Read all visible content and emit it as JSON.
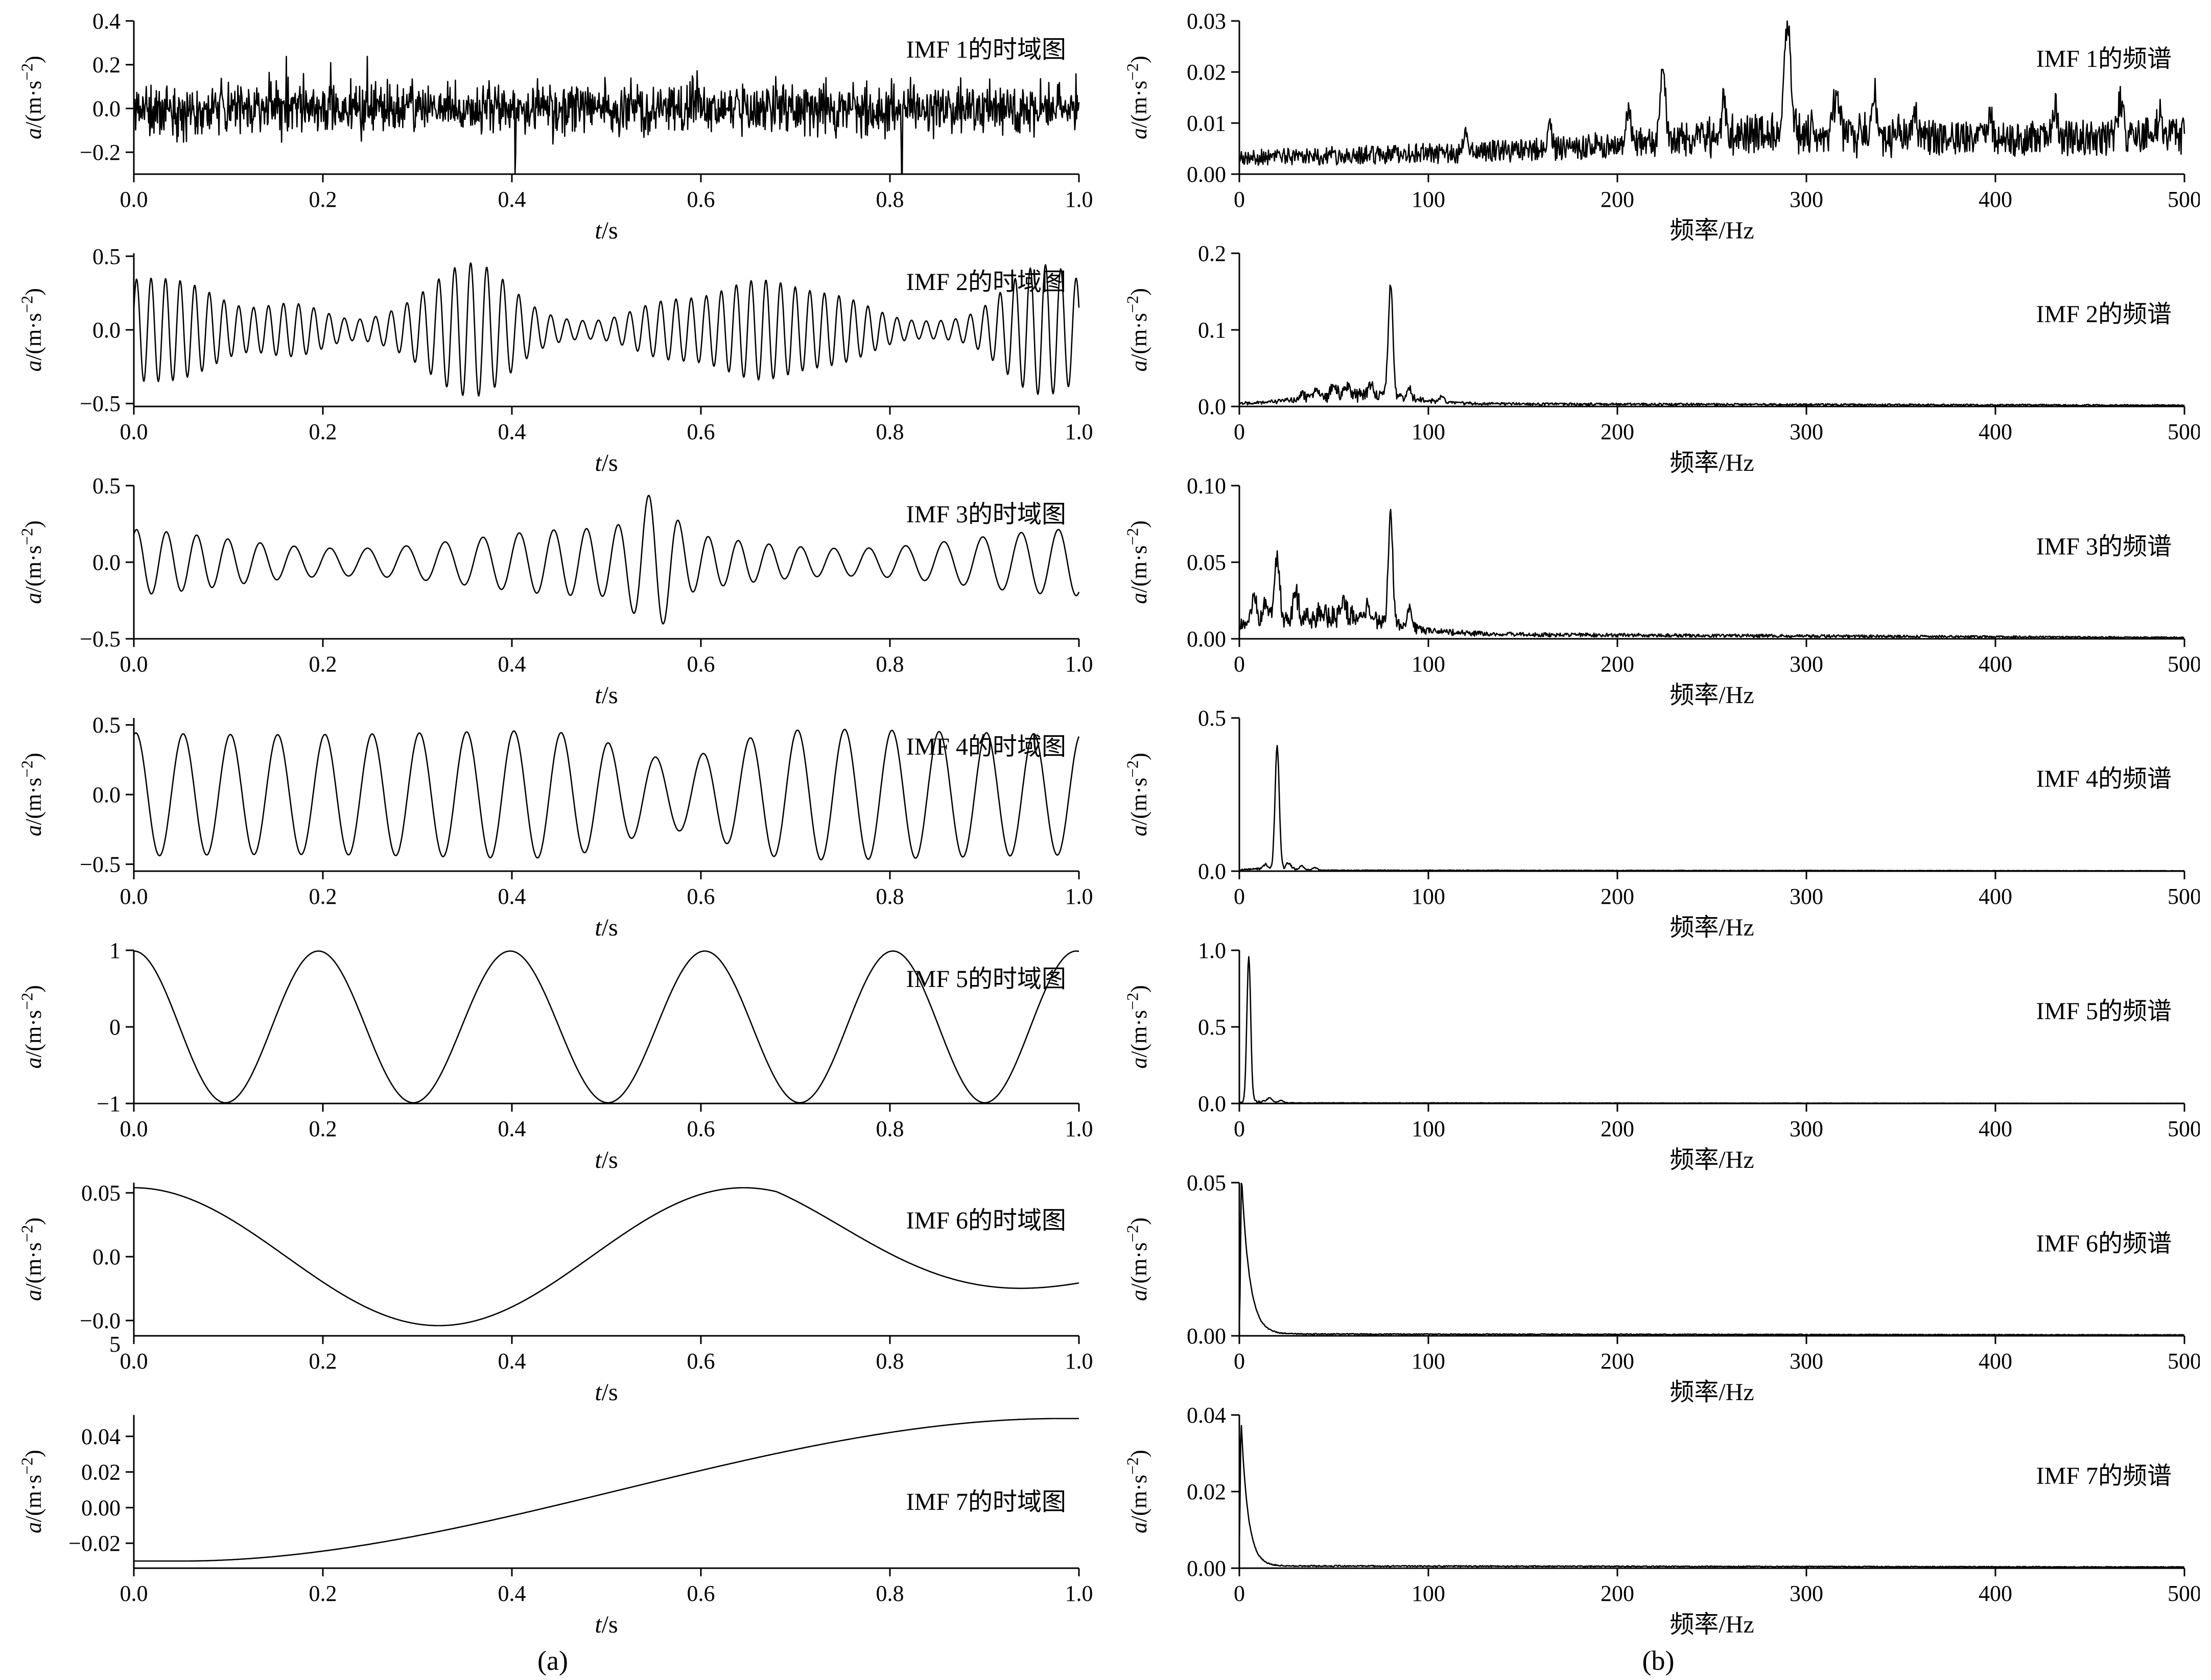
{
  "figure": {
    "caption_a": "(a)",
    "caption_b": "(b)"
  },
  "chart_data": [
    {
      "id": "imf1-time",
      "type": "line",
      "title": "IMF 1的时域图",
      "xlabel": "t/s",
      "ylabel": "a/(m·s⁻²)",
      "xlim": [
        0,
        1
      ],
      "ylim": [
        -0.3,
        0.4
      ],
      "xticks": [
        0,
        0.2,
        0.4,
        0.6,
        0.8,
        1.0
      ],
      "xtick_labels": [
        "0.0",
        "0.2",
        "0.4",
        "0.6",
        "0.8",
        "1.0"
      ],
      "yticks": [
        -0.2,
        0.0,
        0.2,
        0.4
      ],
      "ytick_labels": [
        "−0.2",
        "0.0",
        "0.2",
        "0.4"
      ],
      "title_frac": 0.24,
      "signal": {
        "kind": "noise",
        "n": 1600,
        "seed": 11,
        "amp": 0.062,
        "spike_prob": 0.012,
        "spike_amp": 0.2
      }
    },
    {
      "id": "imf2-time",
      "type": "line",
      "title": "IMF 2的时域图",
      "xlabel": "t/s",
      "ylabel": "a/(m·s⁻²)",
      "xlim": [
        0,
        1
      ],
      "ylim": [
        -0.52,
        0.52
      ],
      "xticks": [
        0,
        0.2,
        0.4,
        0.6,
        0.8,
        1.0
      ],
      "xtick_labels": [
        "0.0",
        "0.2",
        "0.4",
        "0.6",
        "0.8",
        "1.0"
      ],
      "yticks": [
        -0.5,
        0.0,
        0.5
      ],
      "ytick_labels": [
        "−0.5",
        "0.0",
        "0.5"
      ],
      "title_frac": 0.24,
      "signal": {
        "kind": "am",
        "n": 1500,
        "seed": 12,
        "carrier_hz": 62,
        "phase": 0.4,
        "pm_amp": 2.4,
        "pm_hz": 1.3,
        "base": 0.06,
        "env": [
          {
            "hz": 3.2,
            "amp": 0.28,
            "phase": 0.8,
            "pow": 2
          },
          {
            "hz": 5.1,
            "amp": 0.12,
            "phase": 2.5,
            "pow": 2
          }
        ],
        "bursts": []
      }
    },
    {
      "id": "imf3-time",
      "type": "line",
      "title": "IMF 3的时域图",
      "xlabel": "t/s",
      "ylabel": "a/(m·s⁻²)",
      "xlim": [
        0,
        1
      ],
      "ylim": [
        -0.5,
        0.5
      ],
      "xticks": [
        0,
        0.2,
        0.4,
        0.6,
        0.8,
        1.0
      ],
      "xtick_labels": [
        "0.0",
        "0.2",
        "0.4",
        "0.6",
        "0.8",
        "1.0"
      ],
      "yticks": [
        -0.5,
        0.0,
        0.5
      ],
      "ytick_labels": [
        "−0.5",
        "0.0",
        "0.5"
      ],
      "title_frac": 0.24,
      "signal": {
        "kind": "am",
        "n": 1500,
        "seed": 13,
        "carrier_hz": 28,
        "phase": 1.0,
        "pm_amp": 2.2,
        "pm_hz": 1.7,
        "base": 0.09,
        "env": [
          {
            "hz": 1.9,
            "amp": 0.13,
            "phase": 2.0,
            "pow": 1
          }
        ],
        "bursts": [
          {
            "t": 0.55,
            "w": 0.018,
            "amp": 0.24
          }
        ]
      }
    },
    {
      "id": "imf4-time",
      "type": "line",
      "title": "IMF 4的时域图",
      "xlabel": "t/s",
      "ylabel": "a/(m·s⁻²)",
      "xlim": [
        0,
        1
      ],
      "ylim": [
        -0.55,
        0.55
      ],
      "xticks": [
        0,
        0.2,
        0.4,
        0.6,
        0.8,
        1.0
      ],
      "xtick_labels": [
        "0.0",
        "0.2",
        "0.4",
        "0.6",
        "0.8",
        "1.0"
      ],
      "yticks": [
        -0.5,
        0.0,
        0.5
      ],
      "ytick_labels": [
        "−0.5",
        "0.0",
        "0.5"
      ],
      "title_frac": 0.24,
      "signal": {
        "kind": "am",
        "n": 1400,
        "seed": 14,
        "carrier_hz": 20,
        "phase": 1.3,
        "pm_amp": 0,
        "pm_hz": 0,
        "base": 0.48,
        "env": [
          {
            "hz": 1.1,
            "amp": -0.05,
            "phase": 0.5,
            "pow": 1
          }
        ],
        "bursts": [
          {
            "t": 0.57,
            "w": 0.055,
            "amp": -0.22
          }
        ]
      }
    },
    {
      "id": "imf5-time",
      "type": "line",
      "title": "IMF 5的时域图",
      "xlabel": "t/s",
      "ylabel": "a/(m·s⁻²)",
      "xlim": [
        0,
        1
      ],
      "ylim": [
        -1,
        1
      ],
      "xticks": [
        0,
        0.2,
        0.4,
        0.6,
        0.8,
        1.0
      ],
      "xtick_labels": [
        "0.0",
        "0.2",
        "0.4",
        "0.6",
        "0.8",
        "1.0"
      ],
      "yticks": [
        -1,
        0,
        1
      ],
      "ytick_labels": [
        "−1",
        "0",
        "1"
      ],
      "title_frac": 0.24,
      "signal": {
        "kind": "harmonic",
        "n": 1200,
        "hz": 5,
        "amp": 0.99,
        "phase": 0,
        "pm_amp": 0.15,
        "pm_hz": 1.1
      }
    },
    {
      "id": "imf6-time",
      "type": "line",
      "title": "IMF 6的时域图",
      "xlabel": "t/s",
      "ylabel": "a/(m·s⁻²)",
      "xlim": [
        0,
        1
      ],
      "ylim": [
        -0.062,
        0.058
      ],
      "xticks": [
        0,
        0.2,
        0.4,
        0.6,
        0.8,
        1.0
      ],
      "xtick_labels": [
        "0.0",
        "0.2",
        "0.4",
        "0.6",
        "0.8",
        "1.0"
      ],
      "yticks": [
        -0.05,
        0.0,
        0.05
      ],
      "ytick_labels": [
        "−0.0\n5",
        "0.0",
        "0.05"
      ],
      "title_frac": 0.3,
      "signal": {
        "kind": "harmonic",
        "n": 1200,
        "hz": 1.55,
        "amp": 0.054,
        "phase": 0,
        "pm_amp": 0,
        "pm_hz": 0,
        "damp_from": 0.68,
        "damp_tau": 0.35
      }
    },
    {
      "id": "imf7-time",
      "type": "line",
      "title": "IMF 7的时域图",
      "xlabel": "t/s",
      "ylabel": "a/(m·s⁻²)",
      "xlim": [
        0,
        1
      ],
      "ylim": [
        -0.034,
        0.052
      ],
      "xticks": [
        0,
        0.2,
        0.4,
        0.6,
        0.8,
        1.0
      ],
      "xtick_labels": [
        "0.0",
        "0.2",
        "0.4",
        "0.6",
        "0.8",
        "1.0"
      ],
      "yticks": [
        -0.02,
        0.0,
        0.02,
        0.04
      ],
      "ytick_labels": [
        "−0.02",
        "0.00",
        "0.02",
        "0.04"
      ],
      "title_frac": 0.62,
      "signal": {
        "kind": "sigmoid",
        "n": 600,
        "y0": -0.03,
        "y1": 0.05,
        "t0": 0.05,
        "t1": 0.98
      }
    },
    {
      "id": "imf1-spectrum",
      "type": "line",
      "title": "IMF 1的频谱",
      "xlabel": "频率/Hz",
      "ylabel": "a/(m·s⁻²)",
      "xlim": [
        0,
        500
      ],
      "ylim": [
        0,
        0.03
      ],
      "xticks": [
        0,
        100,
        200,
        300,
        400,
        500
      ],
      "xtick_labels": [
        "0",
        "100",
        "200",
        "300",
        "400",
        "500"
      ],
      "yticks": [
        0,
        0.01,
        0.02,
        0.03
      ],
      "ytick_labels": [
        "0.00",
        "0.01",
        "0.02",
        "0.03"
      ],
      "title_frac": 0.3,
      "signal": {
        "kind": "spectrum",
        "n": 1400,
        "seed": 21,
        "floor": [
          0.0032,
          0.0075
        ],
        "noise": 0.5,
        "humps": [
          {
            "hz": 285,
            "w": 55,
            "amp": 0.005,
            "jitter": 1
          }
        ],
        "peaks": [
          [
            290,
            0.0205,
            1.6
          ],
          [
            224,
            0.0135,
            1.4
          ],
          [
            316,
            0.009,
            1.3
          ],
          [
            336,
            0.0075,
            1.2
          ],
          [
            256,
            0.007,
            1.2
          ],
          [
            206,
            0.006,
            1.2
          ],
          [
            357,
            0.0055,
            1.2
          ],
          [
            397,
            0.005,
            1.2
          ],
          [
            432,
            0.0055,
            1.3
          ],
          [
            466,
            0.0065,
            1.4
          ],
          [
            487,
            0.005,
            1.2
          ],
          [
            164,
            0.004,
            1.2
          ],
          [
            120,
            0.003,
            1.2
          ]
        ]
      }
    },
    {
      "id": "imf2-spectrum",
      "type": "line",
      "title": "IMF 2的频谱",
      "xlabel": "频率/Hz",
      "ylabel": "a/(m·s⁻²)",
      "xlim": [
        0,
        500
      ],
      "ylim": [
        0,
        0.2
      ],
      "xticks": [
        0,
        100,
        200,
        300,
        400,
        500
      ],
      "xtick_labels": [
        "0",
        "100",
        "200",
        "300",
        "400",
        "500"
      ],
      "yticks": [
        0,
        0.1,
        0.2
      ],
      "ytick_labels": [
        "0.0",
        "0.1",
        "0.2"
      ],
      "title_frac": 0.45,
      "signal": {
        "kind": "spectrum",
        "n": 1400,
        "seed": 22,
        "floor": [
          0.004,
          0.0015
        ],
        "noise": 0.5,
        "humps": [
          {
            "hz": 62,
            "w": 26,
            "amp": 0.02,
            "jitter": 0.85
          }
        ],
        "peaks": [
          [
            80,
            0.15,
            1.2
          ],
          [
            50,
            0.016,
            1.3
          ],
          [
            57,
            0.012,
            1.2
          ],
          [
            70,
            0.014,
            1.2
          ],
          [
            90,
            0.012,
            1.2
          ],
          [
            41,
            0.01,
            1.2
          ],
          [
            107,
            0.007,
            1.2
          ],
          [
            33,
            0.008,
            1.2
          ]
        ]
      }
    },
    {
      "id": "imf3-spectrum",
      "type": "line",
      "title": "IMF 3的频谱",
      "xlabel": "频率/Hz",
      "ylabel": "a/(m·s⁻²)",
      "xlim": [
        0,
        500
      ],
      "ylim": [
        0,
        0.1
      ],
      "xticks": [
        0,
        100,
        200,
        300,
        400,
        500
      ],
      "xtick_labels": [
        "0",
        "100",
        "200",
        "300",
        "400",
        "500"
      ],
      "yticks": [
        0,
        0.05,
        0.1
      ],
      "ytick_labels": [
        "0.00",
        "0.05",
        "0.10"
      ],
      "title_frac": 0.45,
      "signal": {
        "kind": "spectrum",
        "n": 1400,
        "seed": 23,
        "floor": [
          0.0035,
          0.0008
        ],
        "noise": 0.5,
        "humps": [
          {
            "hz": 42,
            "w": 34,
            "amp": 0.02,
            "jitter": 0.8
          }
        ],
        "peaks": [
          [
            80,
            0.072,
            1.2
          ],
          [
            20,
            0.04,
            1.3
          ],
          [
            8,
            0.016,
            1.3
          ],
          [
            30,
            0.015,
            1.2
          ],
          [
            55,
            0.012,
            1.2
          ],
          [
            90,
            0.014,
            1.2
          ],
          [
            68,
            0.011,
            1.2
          ],
          [
            14,
            0.013,
            1.2
          ]
        ]
      }
    },
    {
      "id": "imf4-spectrum",
      "type": "line",
      "title": "IMF 4的频谱",
      "xlabel": "频率/Hz",
      "ylabel": "a/(m·s⁻²)",
      "xlim": [
        0,
        500
      ],
      "ylim": [
        0,
        0.5
      ],
      "xticks": [
        0,
        100,
        200,
        300,
        400,
        500
      ],
      "xtick_labels": [
        "0",
        "100",
        "200",
        "300",
        "400",
        "500"
      ],
      "yticks": [
        0,
        0.5
      ],
      "ytick_labels": [
        "0.0",
        "0.5"
      ],
      "title_frac": 0.45,
      "signal": {
        "kind": "spectrum",
        "n": 1400,
        "seed": 24,
        "floor": [
          0.003,
          0.0012
        ],
        "noise": 0.4,
        "humps": [
          {
            "hz": 20,
            "w": 11,
            "amp": 0.012,
            "jitter": 0.85
          }
        ],
        "peaks": [
          [
            20,
            0.4,
            1.1
          ],
          [
            26,
            0.018,
            1.1
          ],
          [
            14,
            0.014,
            1.1
          ],
          [
            33,
            0.01,
            1.1
          ],
          [
            40,
            0.008,
            1.1
          ]
        ]
      }
    },
    {
      "id": "imf5-spectrum",
      "type": "line",
      "title": "IMF 5的频谱",
      "xlabel": "频率/Hz",
      "ylabel": "a/(m·s⁻²)",
      "xlim": [
        0,
        500
      ],
      "ylim": [
        0,
        1.0
      ],
      "xticks": [
        0,
        100,
        200,
        300,
        400,
        500
      ],
      "xtick_labels": [
        "0",
        "100",
        "200",
        "300",
        "400",
        "500"
      ],
      "yticks": [
        0,
        0.5,
        1.0
      ],
      "ytick_labels": [
        "0.0",
        "0.5",
        "1.0"
      ],
      "title_frac": 0.45,
      "signal": {
        "kind": "spectrum",
        "n": 1400,
        "seed": 25,
        "floor": [
          0.004,
          0.0012
        ],
        "noise": 0.4,
        "humps": [
          {
            "hz": 9,
            "w": 6,
            "amp": 0.018,
            "jitter": 0.8
          }
        ],
        "peaks": [
          [
            5,
            0.95,
            1.0
          ],
          [
            16,
            0.028,
            1.4
          ],
          [
            22,
            0.015,
            1.2
          ]
        ]
      }
    },
    {
      "id": "imf6-spectrum",
      "type": "line",
      "title": "IMF 6的频谱",
      "xlabel": "频率/Hz",
      "ylabel": "a/(m·s⁻²)",
      "xlim": [
        0,
        500
      ],
      "ylim": [
        0,
        0.05
      ],
      "xticks": [
        0,
        100,
        200,
        300,
        400,
        500
      ],
      "xtick_labels": [
        "0",
        "100",
        "200",
        "300",
        "400",
        "500"
      ],
      "yticks": [
        0,
        0.05
      ],
      "ytick_labels": [
        "0.00",
        "0.05"
      ],
      "title_frac": 0.45,
      "signal": {
        "kind": "spectrum",
        "n": 1400,
        "seed": 26,
        "floor": [
          0.0006,
          0.0003
        ],
        "noise": 0.3,
        "humps": [],
        "peaks": [],
        "decay": {
          "amp": 0.051,
          "from": 1.2,
          "tau": 4.2,
          "rise": 0.5
        }
      }
    },
    {
      "id": "imf7-spectrum",
      "type": "line",
      "title": "IMF 7的频谱",
      "xlabel": "频率/Hz",
      "ylabel": "a/(m·s⁻²)",
      "xlim": [
        0,
        500
      ],
      "ylim": [
        0,
        0.04
      ],
      "xticks": [
        0,
        100,
        200,
        300,
        400,
        500
      ],
      "xtick_labels": [
        "0",
        "100",
        "200",
        "300",
        "400",
        "500"
      ],
      "yticks": [
        0,
        0.02,
        0.04
      ],
      "ytick_labels": [
        "0.00",
        "0.02",
        "0.04"
      ],
      "title_frac": 0.45,
      "signal": {
        "kind": "spectrum",
        "n": 1400,
        "seed": 27,
        "floor": [
          0.0006,
          0.0003
        ],
        "noise": 0.3,
        "humps": [],
        "peaks": [],
        "decay": {
          "amp": 0.0375,
          "from": 1.0,
          "tau": 3.6,
          "rise": 0.5
        }
      }
    }
  ]
}
